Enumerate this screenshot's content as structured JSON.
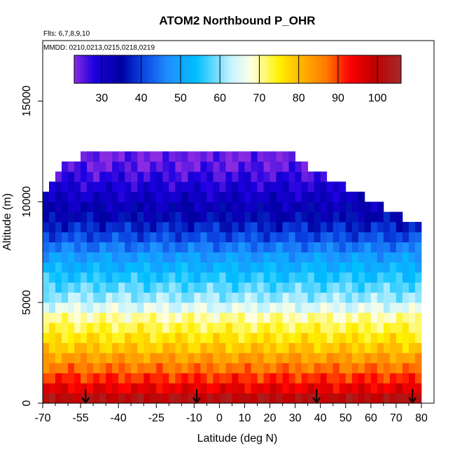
{
  "chart_data": {
    "type": "heatmap",
    "title": "ATOM2 Northbound P_OHR",
    "flights_note": "Flts: 6,7,8,9,10",
    "dates_note": "MMDD: 0210,0213,0215,0218,0219",
    "xlabel": "Latitude (deg N)",
    "ylabel": "Altitude (m)",
    "xlim": [
      -70,
      85
    ],
    "ylim": [
      0,
      18000
    ],
    "x_ticks": [
      "-70",
      "-55",
      "-40",
      "-25",
      "-10",
      "0",
      "10",
      "20",
      "30",
      "40",
      "50",
      "60",
      "70",
      "80"
    ],
    "x_tick_values": [
      -70,
      -55,
      -40,
      -25,
      -10,
      0,
      10,
      20,
      30,
      40,
      50,
      60,
      70,
      80
    ],
    "x_minor_ticks": [
      -65,
      -60,
      -50,
      -45,
      -35,
      -30,
      -20,
      -15,
      -5,
      5,
      15,
      25,
      35,
      45,
      55,
      65,
      75
    ],
    "y_ticks": [
      "0",
      "5000",
      "10000",
      "15000"
    ],
    "y_tick_values": [
      0,
      5000,
      10000,
      15000
    ],
    "colorbar": {
      "range": [
        23,
        106
      ],
      "tick_labels": [
        "30",
        "40",
        "50",
        "60",
        "70",
        "80",
        "90",
        "100"
      ],
      "tick_values": [
        30,
        40,
        50,
        60,
        70,
        80,
        90,
        100
      ],
      "colors": [
        "#8a2be2",
        "#1c00e0",
        "#0000a0",
        "#0a40e0",
        "#1e90ff",
        "#00bfff",
        "#c8f4ff",
        "#ffffe0",
        "#fff200",
        "#ffb000",
        "#ff7a00",
        "#ff0000",
        "#c00000",
        "#a52a2a"
      ],
      "color_stops": [
        23,
        28,
        35,
        40,
        47,
        54,
        63,
        68,
        75,
        81,
        87,
        93,
        99,
        106
      ]
    },
    "altitude_profile": [
      {
        "alt": 250,
        "value": 101
      },
      {
        "alt": 750,
        "value": 95
      },
      {
        "alt": 1250,
        "value": 91
      },
      {
        "alt": 1750,
        "value": 87
      },
      {
        "alt": 2250,
        "value": 83
      },
      {
        "alt": 2750,
        "value": 79
      },
      {
        "alt": 3250,
        "value": 76
      },
      {
        "alt": 3750,
        "value": 73
      },
      {
        "alt": 4250,
        "value": 70
      },
      {
        "alt": 4750,
        "value": 65
      },
      {
        "alt": 5250,
        "value": 61
      },
      {
        "alt": 5750,
        "value": 58
      },
      {
        "alt": 6250,
        "value": 55
      },
      {
        "alt": 6750,
        "value": 52
      },
      {
        "alt": 7250,
        "value": 49
      },
      {
        "alt": 7750,
        "value": 45
      },
      {
        "alt": 8250,
        "value": 41
      },
      {
        "alt": 8750,
        "value": 38
      },
      {
        "alt": 9250,
        "value": 35
      },
      {
        "alt": 9750,
        "value": 33
      },
      {
        "alt": 10250,
        "value": 31
      },
      {
        "alt": 10750,
        "value": 29
      },
      {
        "alt": 11250,
        "value": 27
      },
      {
        "alt": 11750,
        "value": 25
      },
      {
        "alt": 12250,
        "value": 24
      }
    ],
    "profile_top": [
      {
        "lat": -70,
        "alt": 10250
      },
      {
        "lat": -68,
        "alt": 10750
      },
      {
        "lat": -65,
        "alt": 11250
      },
      {
        "lat": -62,
        "alt": 11750
      },
      {
        "lat": -55,
        "alt": 12250
      },
      {
        "lat": -15,
        "alt": 12250
      },
      {
        "lat": -8,
        "alt": 12750
      },
      {
        "lat": -5,
        "alt": 12250
      },
      {
        "lat": 30,
        "alt": 12250
      },
      {
        "lat": 35,
        "alt": 11750
      },
      {
        "lat": 42,
        "alt": 11250
      },
      {
        "lat": 50,
        "alt": 10750
      },
      {
        "lat": 58,
        "alt": 10250
      },
      {
        "lat": 65,
        "alt": 9750
      },
      {
        "lat": 72,
        "alt": 9250
      },
      {
        "lat": 78,
        "alt": 8750
      },
      {
        "lat": 80,
        "alt": 8750
      }
    ],
    "lat_range": [
      -70,
      80
    ],
    "arrow_latitudes": [
      -53,
      -9,
      38.5,
      76.5
    ],
    "arrow_base_alt": 700
  }
}
